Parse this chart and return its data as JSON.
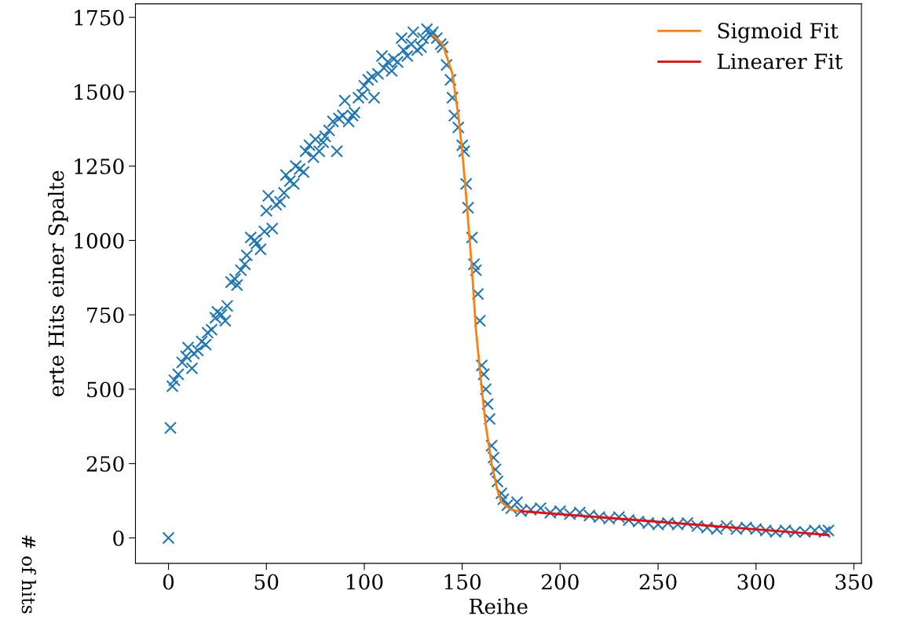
{
  "chart_data": {
    "type": "scatter",
    "xlabel": "Reihe",
    "ylabel": "erte Hits einer Spalte",
    "annotations": [
      "# of hits"
    ],
    "xlim": [
      -16.85,
      353.85
    ],
    "ylim": [
      -85.5,
      1795.5
    ],
    "xticks": [
      0,
      50,
      100,
      150,
      200,
      250,
      300,
      350
    ],
    "yticks": [
      0,
      250,
      500,
      750,
      1000,
      1250,
      1500,
      1750
    ],
    "grid": false,
    "legend": "top right",
    "marker": "cross",
    "series": [
      {
        "color": "#1f77b4",
        "x": [
          0,
          1,
          2,
          3,
          5,
          7,
          9,
          10,
          12,
          13,
          15,
          17,
          19,
          20,
          22,
          24,
          25,
          27,
          29,
          30,
          32,
          34,
          35,
          37,
          39,
          40,
          42,
          44,
          45,
          47,
          49,
          50,
          51,
          53,
          55,
          57,
          59,
          60,
          62,
          64,
          65,
          67,
          69,
          70,
          72,
          74,
          75,
          77,
          79,
          80,
          82,
          84,
          86,
          87,
          89,
          90,
          92,
          94,
          95,
          97,
          99,
          100,
          102,
          104,
          105,
          107,
          109,
          110,
          112,
          114,
          115,
          117,
          119,
          120,
          122,
          124,
          125,
          127,
          129,
          130,
          132,
          134,
          135,
          137,
          139,
          140,
          142,
          144,
          145,
          146,
          148,
          150,
          151,
          152,
          153,
          155,
          156,
          157,
          158,
          159,
          160,
          161,
          162,
          163,
          164,
          165,
          166,
          167,
          168,
          170,
          171,
          173,
          175,
          178,
          180,
          185,
          190,
          195,
          200,
          205,
          210,
          215,
          220,
          225,
          230,
          235,
          240,
          245,
          250,
          255,
          260,
          265,
          270,
          275,
          280,
          285,
          290,
          295,
          300,
          305,
          310,
          315,
          320,
          325,
          330,
          335,
          337
        ],
        "values": [
          0,
          370,
          510,
          530,
          550,
          590,
          610,
          640,
          570,
          620,
          630,
          660,
          650,
          690,
          700,
          740,
          760,
          750,
          730,
          780,
          860,
          870,
          850,
          900,
          920,
          950,
          1010,
          1000,
          990,
          970,
          1030,
          1100,
          1150,
          1040,
          1120,
          1130,
          1160,
          1220,
          1200,
          1190,
          1250,
          1240,
          1230,
          1300,
          1320,
          1280,
          1340,
          1300,
          1330,
          1350,
          1370,
          1400,
          1300,
          1410,
          1420,
          1470,
          1400,
          1420,
          1430,
          1480,
          1490,
          1520,
          1540,
          1550,
          1480,
          1560,
          1620,
          1580,
          1600,
          1570,
          1610,
          1600,
          1680,
          1640,
          1620,
          1660,
          1700,
          1640,
          1650,
          1680,
          1710,
          1690,
          1700,
          1680,
          1660,
          1650,
          1590,
          1540,
          1480,
          1420,
          1380,
          1320,
          1300,
          1190,
          1110,
          1010,
          920,
          900,
          820,
          730,
          580,
          550,
          500,
          450,
          400,
          310,
          270,
          230,
          190,
          150,
          130,
          110,
          100,
          120,
          90,
          95,
          100,
          85,
          90,
          80,
          85,
          75,
          70,
          65,
          70,
          60,
          55,
          50,
          45,
          50,
          45,
          50,
          40,
          35,
          30,
          40,
          30,
          35,
          30,
          25,
          20,
          25,
          20,
          20,
          25,
          20,
          25
        ]
      },
      {
        "type": "line",
        "name": "Sigmoid Fit",
        "color": "#ff7f0e",
        "marker": "none",
        "x": [
          135,
          140,
          145,
          148,
          150,
          152,
          155,
          157,
          160,
          162,
          165,
          168,
          170,
          175,
          180
        ],
        "values": [
          1690,
          1660,
          1560,
          1420,
          1300,
          1150,
          900,
          700,
          500,
          380,
          250,
          160,
          120,
          95,
          88
        ]
      },
      {
        "type": "line",
        "name": "Linearer Fit",
        "color": "#ff0000",
        "marker": "none",
        "x": [
          180,
          337
        ],
        "values": [
          90,
          10
        ]
      }
    ]
  }
}
